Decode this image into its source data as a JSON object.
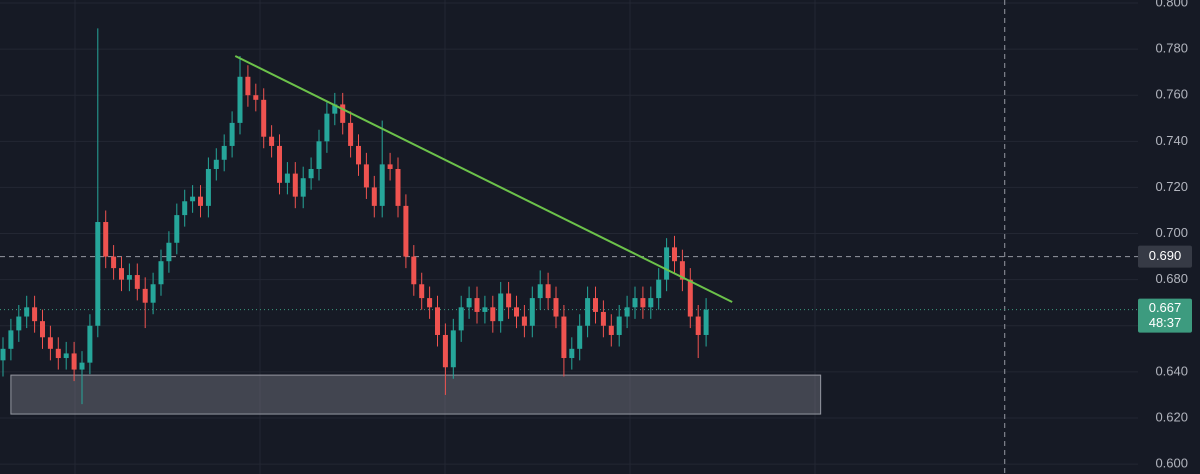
{
  "chart_data": {
    "type": "candlestick",
    "ylim": [
      0.5957,
      0.8013
    ],
    "yticks": [
      {
        "value": 0.8,
        "label": "0.800"
      },
      {
        "value": 0.78,
        "label": "0.780"
      },
      {
        "value": 0.76,
        "label": "0.760"
      },
      {
        "value": 0.74,
        "label": "0.740"
      },
      {
        "value": 0.72,
        "label": "0.720"
      },
      {
        "value": 0.7,
        "label": "0.700"
      },
      {
        "value": 0.68,
        "label": "0.680"
      },
      {
        "value": 0.66,
        "label": "0.660"
      },
      {
        "value": 0.64,
        "label": "0.640"
      },
      {
        "value": 0.62,
        "label": "0.620"
      },
      {
        "value": 0.6,
        "label": "0.600"
      }
    ],
    "grid": true,
    "up_color": "#26a69a",
    "down_color": "#ef5350",
    "open": [
      0.645,
      0.65,
      0.658,
      0.664,
      0.668,
      0.662,
      0.655,
      0.65,
      0.646,
      0.648,
      0.641,
      0.644,
      0.66,
      0.705,
      0.69,
      0.685,
      0.68,
      0.682,
      0.676,
      0.67,
      0.678,
      0.688,
      0.696,
      0.708,
      0.714,
      0.716,
      0.712,
      0.728,
      0.732,
      0.738,
      0.748,
      0.768,
      0.76,
      0.758,
      0.742,
      0.738,
      0.722,
      0.726,
      0.716,
      0.724,
      0.728,
      0.74,
      0.752,
      0.756,
      0.748,
      0.738,
      0.73,
      0.72,
      0.712,
      0.73,
      0.728,
      0.712,
      0.69,
      0.678,
      0.672,
      0.668,
      0.656,
      0.642,
      0.658,
      0.668,
      0.672,
      0.666,
      0.668,
      0.662,
      0.674,
      0.668,
      0.664,
      0.66,
      0.672,
      0.678,
      0.672,
      0.664,
      0.646,
      0.65,
      0.66,
      0.672,
      0.666,
      0.66,
      0.656,
      0.664,
      0.668,
      0.672,
      0.668,
      0.672,
      0.68,
      0.694,
      0.688,
      0.68,
      0.664,
      0.656
    ],
    "high": [
      0.655,
      0.663,
      0.669,
      0.673,
      0.673,
      0.667,
      0.66,
      0.655,
      0.653,
      0.653,
      0.649,
      0.665,
      0.789,
      0.71,
      0.695,
      0.69,
      0.687,
      0.687,
      0.681,
      0.683,
      0.693,
      0.701,
      0.713,
      0.719,
      0.721,
      0.721,
      0.733,
      0.737,
      0.743,
      0.753,
      0.777,
      0.773,
      0.765,
      0.763,
      0.747,
      0.743,
      0.731,
      0.731,
      0.729,
      0.733,
      0.745,
      0.757,
      0.761,
      0.761,
      0.753,
      0.743,
      0.735,
      0.725,
      0.749,
      0.735,
      0.733,
      0.717,
      0.695,
      0.683,
      0.677,
      0.673,
      0.661,
      0.663,
      0.673,
      0.677,
      0.677,
      0.673,
      0.673,
      0.679,
      0.679,
      0.673,
      0.669,
      0.677,
      0.684,
      0.683,
      0.677,
      0.669,
      0.655,
      0.665,
      0.677,
      0.677,
      0.671,
      0.665,
      0.669,
      0.673,
      0.677,
      0.677,
      0.677,
      0.685,
      0.698,
      0.699,
      0.693,
      0.685,
      0.669,
      0.672
    ],
    "low": [
      0.638,
      0.645,
      0.653,
      0.659,
      0.657,
      0.65,
      0.645,
      0.641,
      0.641,
      0.636,
      0.626,
      0.639,
      0.655,
      0.685,
      0.68,
      0.675,
      0.675,
      0.671,
      0.659,
      0.665,
      0.673,
      0.683,
      0.691,
      0.703,
      0.709,
      0.707,
      0.707,
      0.723,
      0.727,
      0.733,
      0.743,
      0.755,
      0.753,
      0.737,
      0.733,
      0.717,
      0.717,
      0.711,
      0.711,
      0.719,
      0.723,
      0.735,
      0.747,
      0.743,
      0.733,
      0.725,
      0.715,
      0.707,
      0.707,
      0.723,
      0.707,
      0.685,
      0.673,
      0.667,
      0.663,
      0.651,
      0.63,
      0.637,
      0.653,
      0.663,
      0.661,
      0.661,
      0.657,
      0.657,
      0.663,
      0.659,
      0.655,
      0.655,
      0.667,
      0.667,
      0.659,
      0.638,
      0.641,
      0.645,
      0.655,
      0.661,
      0.655,
      0.651,
      0.651,
      0.659,
      0.663,
      0.663,
      0.663,
      0.667,
      0.675,
      0.683,
      0.675,
      0.659,
      0.646,
      0.651
    ],
    "close": [
      0.65,
      0.658,
      0.664,
      0.668,
      0.662,
      0.655,
      0.65,
      0.646,
      0.648,
      0.641,
      0.644,
      0.66,
      0.705,
      0.69,
      0.685,
      0.68,
      0.682,
      0.676,
      0.67,
      0.678,
      0.688,
      0.696,
      0.708,
      0.714,
      0.716,
      0.712,
      0.728,
      0.732,
      0.738,
      0.748,
      0.768,
      0.76,
      0.758,
      0.742,
      0.738,
      0.722,
      0.726,
      0.716,
      0.724,
      0.728,
      0.74,
      0.752,
      0.756,
      0.748,
      0.738,
      0.73,
      0.72,
      0.712,
      0.73,
      0.728,
      0.712,
      0.69,
      0.678,
      0.672,
      0.668,
      0.656,
      0.642,
      0.658,
      0.668,
      0.672,
      0.666,
      0.668,
      0.662,
      0.674,
      0.668,
      0.664,
      0.66,
      0.672,
      0.678,
      0.672,
      0.664,
      0.646,
      0.65,
      0.66,
      0.672,
      0.666,
      0.66,
      0.656,
      0.664,
      0.668,
      0.672,
      0.668,
      0.672,
      0.68,
      0.694,
      0.688,
      0.68,
      0.664,
      0.656,
      0.667
    ],
    "trendline": {
      "start_index": 29.4,
      "start_price": 0.777,
      "end_index": 92.3,
      "end_price": 0.6703,
      "color": "#6cc24a"
    },
    "zone": {
      "start_index": 1.0,
      "end_index": 103.5,
      "top": 0.6386,
      "bottom": 0.6217
    },
    "crosshair": {
      "index": 126.8,
      "price": {
        "value": 0.69,
        "label": "0.690"
      }
    },
    "last_price": {
      "value": 0.667,
      "label": "0.667",
      "countdown": "48:37",
      "color": "#3d9b7f"
    }
  }
}
